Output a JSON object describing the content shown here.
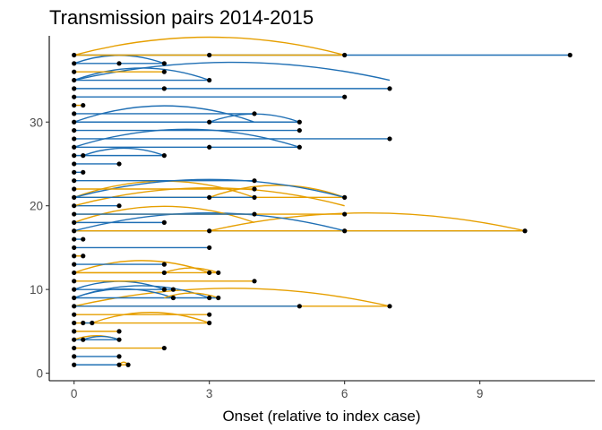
{
  "chart_data": {
    "type": "scatter",
    "title": "Transmission pairs 2014-2015",
    "xlabel": "Onset (relative to index case)",
    "ylabel": "",
    "xlim": [
      -0.55,
      11.55
    ],
    "ylim": [
      -0.9,
      40.3
    ],
    "x_ticks": [
      0,
      3,
      6,
      9
    ],
    "x_tick_labels": [
      "0",
      "3",
      "6",
      "9"
    ],
    "y_ticks": [
      0,
      10,
      20,
      30
    ],
    "y_tick_labels": [
      "0",
      "10",
      "20",
      "30"
    ],
    "grid": false,
    "legend": "none",
    "colors": {
      "blue": "#1f6fb4",
      "orange": "#e69f00",
      "point": "#000000",
      "axis": "#000000"
    },
    "pairs": [
      {
        "y": 1,
        "x0": 0,
        "x1": 1.2,
        "color": "orange"
      },
      {
        "y": 1,
        "x0": 0,
        "x1": 1.0,
        "color": "blue"
      },
      {
        "y": 1,
        "x0": 1.0,
        "x1": 1.2,
        "color": "orange",
        "arc": true
      },
      {
        "y": 2,
        "x0": 0,
        "x1": 1.0,
        "color": "blue"
      },
      {
        "y": 3,
        "x0": 0,
        "x1": 2.0,
        "color": "orange"
      },
      {
        "y": 4,
        "x0": 0,
        "x1": 1.0,
        "color": "blue"
      },
      {
        "y": 4,
        "x0": 0,
        "x1": 1.0,
        "color": "orange",
        "arc": true
      },
      {
        "y": 4,
        "x0": 0.2,
        "x1": 1.0,
        "color": "blue",
        "arc": true
      },
      {
        "y": 5,
        "x0": 0,
        "x1": 1.0,
        "color": "orange"
      },
      {
        "y": 6,
        "x0": 0,
        "x1": 3.0,
        "color": "orange"
      },
      {
        "y": 6,
        "x0": 0.4,
        "x1": 3.0,
        "color": "orange",
        "arc": true
      },
      {
        "y": 6,
        "x0": 0.2,
        "x1": 0.4,
        "color": "blue"
      },
      {
        "y": 7,
        "x0": 0,
        "x1": 3.0,
        "color": "orange"
      },
      {
        "y": 8,
        "x0": 0,
        "x1": 7.0,
        "color": "orange"
      },
      {
        "y": 8,
        "x0": 0,
        "x1": 7.0,
        "color": "orange",
        "arc": true
      },
      {
        "y": 8,
        "x0": 0,
        "x1": 5.0,
        "color": "blue"
      },
      {
        "y": 9,
        "x0": 0,
        "x1": 3.2,
        "color": "blue"
      },
      {
        "y": 9,
        "x0": 0,
        "x1": 2.2,
        "color": "blue",
        "arc": true
      },
      {
        "y": 9,
        "x0": 0,
        "x1": 3.0,
        "color": "blue",
        "arc": true
      },
      {
        "y": 9,
        "x0": 2.0,
        "x1": 3.2,
        "color": "orange",
        "arc": true
      },
      {
        "y": 10,
        "x0": 0,
        "x1": 2.2,
        "color": "blue"
      },
      {
        "y": 10,
        "x0": 0,
        "x1": 2.0,
        "color": "blue",
        "arc": true
      },
      {
        "y": 11,
        "x0": 0,
        "x1": 4.0,
        "color": "orange"
      },
      {
        "y": 12,
        "x0": 0,
        "x1": 3.2,
        "color": "orange"
      },
      {
        "y": 12,
        "x0": 0,
        "x1": 3.0,
        "color": "orange",
        "arc": true
      },
      {
        "y": 12,
        "x0": 0,
        "x1": 2.0,
        "color": "orange"
      },
      {
        "y": 12,
        "x0": 2.0,
        "x1": 3.2,
        "color": "orange",
        "arc": true
      },
      {
        "y": 13,
        "x0": 0,
        "x1": 2.0,
        "color": "blue"
      },
      {
        "y": 14,
        "x0": 0,
        "x1": 0.2,
        "color": "orange"
      },
      {
        "y": 15,
        "x0": 0,
        "x1": 3.0,
        "color": "blue"
      },
      {
        "y": 16,
        "x0": 0,
        "x1": 0.2,
        "color": "blue"
      },
      {
        "y": 17,
        "x0": 0,
        "x1": 10.0,
        "color": "blue"
      },
      {
        "y": 17,
        "x0": 0,
        "x1": 6.0,
        "color": "orange"
      },
      {
        "y": 17,
        "x0": 3.0,
        "x1": 10.0,
        "color": "orange",
        "arc": true
      },
      {
        "y": 17,
        "x0": 0,
        "x1": 6.0,
        "color": "blue",
        "arc": true
      },
      {
        "y": 17,
        "x0": 6.0,
        "x1": 10.0,
        "color": "orange"
      },
      {
        "y": 18,
        "x0": 0,
        "x1": 2.0,
        "color": "blue"
      },
      {
        "y": 18,
        "x0": 0,
        "x1": 4.0,
        "color": "orange",
        "arc": true
      },
      {
        "y": 19,
        "x0": 0,
        "x1": 6.0,
        "color": "orange"
      },
      {
        "y": 19,
        "x0": 0,
        "x1": 4.0,
        "color": "blue"
      },
      {
        "y": 20,
        "x0": 0,
        "x1": 1.0,
        "color": "blue"
      },
      {
        "y": 20,
        "x0": 0,
        "x1": 6.0,
        "color": "orange",
        "arc": true
      },
      {
        "y": 21,
        "x0": 0,
        "x1": 6.0,
        "color": "orange"
      },
      {
        "y": 21,
        "x0": 0,
        "x1": 4.0,
        "color": "blue"
      },
      {
        "y": 21,
        "x0": 0,
        "x1": 4.0,
        "color": "orange",
        "arc": true
      },
      {
        "y": 21,
        "x0": 3.0,
        "x1": 6.0,
        "color": "orange",
        "arc": true
      },
      {
        "y": 21,
        "x0": 0,
        "x1": 6.0,
        "color": "blue",
        "arc": true
      },
      {
        "y": 22,
        "x0": 0,
        "x1": 4.0,
        "color": "orange"
      },
      {
        "y": 23,
        "x0": 0,
        "x1": 4.0,
        "color": "blue"
      },
      {
        "y": 24,
        "x0": 0,
        "x1": 0.2,
        "color": "blue"
      },
      {
        "y": 25,
        "x0": 0,
        "x1": 1.0,
        "color": "blue"
      },
      {
        "y": 26,
        "x0": 0,
        "x1": 2.0,
        "color": "blue"
      },
      {
        "y": 26,
        "x0": 0.2,
        "x1": 2.0,
        "color": "blue",
        "arc": true
      },
      {
        "y": 27,
        "x0": 0,
        "x1": 5.0,
        "color": "blue"
      },
      {
        "y": 27,
        "x0": 0,
        "x1": 5.0,
        "color": "blue",
        "arc": true
      },
      {
        "y": 28,
        "x0": 0,
        "x1": 7.0,
        "color": "blue"
      },
      {
        "y": 29,
        "x0": 0,
        "x1": 5.0,
        "color": "blue"
      },
      {
        "y": 30,
        "x0": 0,
        "x1": 5.0,
        "color": "blue"
      },
      {
        "y": 30,
        "x0": 0,
        "x1": 4.0,
        "color": "blue",
        "arc": true
      },
      {
        "y": 30,
        "x0": 3.0,
        "x1": 5.0,
        "color": "blue",
        "arc": true
      },
      {
        "y": 31,
        "x0": 0,
        "x1": 4.0,
        "color": "blue"
      },
      {
        "y": 32,
        "x0": 0,
        "x1": 0.2,
        "color": "orange"
      },
      {
        "y": 33,
        "x0": 0,
        "x1": 6.0,
        "color": "blue"
      },
      {
        "y": 34,
        "x0": 0,
        "x1": 7.0,
        "color": "blue"
      },
      {
        "y": 35,
        "x0": 0,
        "x1": 7.0,
        "color": "blue",
        "arc": true
      },
      {
        "y": 35,
        "x0": 0,
        "x1": 3.0,
        "color": "blue"
      },
      {
        "y": 35,
        "x0": 0,
        "x1": 3.0,
        "color": "blue",
        "arc": true
      },
      {
        "y": 36,
        "x0": 0,
        "x1": 2.0,
        "color": "orange"
      },
      {
        "y": 37,
        "x0": 0,
        "x1": 2.0,
        "color": "blue"
      },
      {
        "y": 37,
        "x0": 0,
        "x1": 2.0,
        "color": "blue",
        "arc": true
      },
      {
        "y": 38,
        "x0": 0,
        "x1": 11.0,
        "color": "blue"
      },
      {
        "y": 38,
        "x0": 0,
        "x1": 6.0,
        "color": "orange"
      },
      {
        "y": 38,
        "x0": 0,
        "x1": 6.0,
        "color": "orange",
        "arc": true
      }
    ],
    "points": [
      [
        0,
        1
      ],
      [
        1.0,
        1
      ],
      [
        1.2,
        1
      ],
      [
        0,
        2
      ],
      [
        1.0,
        2
      ],
      [
        0,
        3
      ],
      [
        2.0,
        3
      ],
      [
        0,
        4
      ],
      [
        0.2,
        4
      ],
      [
        1.0,
        4
      ],
      [
        0,
        5
      ],
      [
        1.0,
        5
      ],
      [
        0,
        6
      ],
      [
        0.2,
        6
      ],
      [
        0.4,
        6
      ],
      [
        3.0,
        6
      ],
      [
        0,
        7
      ],
      [
        3.0,
        7
      ],
      [
        0,
        8
      ],
      [
        5.0,
        8
      ],
      [
        7.0,
        8
      ],
      [
        0,
        9
      ],
      [
        2.2,
        9
      ],
      [
        3.0,
        9
      ],
      [
        3.2,
        9
      ],
      [
        0,
        10
      ],
      [
        2.0,
        10
      ],
      [
        2.2,
        10
      ],
      [
        0,
        11
      ],
      [
        4.0,
        11
      ],
      [
        0,
        12
      ],
      [
        2.0,
        12
      ],
      [
        3.0,
        12
      ],
      [
        3.2,
        12
      ],
      [
        0,
        13
      ],
      [
        2.0,
        13
      ],
      [
        0,
        14
      ],
      [
        0.2,
        14
      ],
      [
        0,
        15
      ],
      [
        3.0,
        15
      ],
      [
        0,
        16
      ],
      [
        0.2,
        16
      ],
      [
        0,
        17
      ],
      [
        3.0,
        17
      ],
      [
        6.0,
        17
      ],
      [
        10.0,
        17
      ],
      [
        0,
        18
      ],
      [
        2.0,
        18
      ],
      [
        0,
        19
      ],
      [
        4.0,
        19
      ],
      [
        6.0,
        19
      ],
      [
        0,
        20
      ],
      [
        1.0,
        20
      ],
      [
        0,
        21
      ],
      [
        3.0,
        21
      ],
      [
        4.0,
        21
      ],
      [
        6.0,
        21
      ],
      [
        0,
        22
      ],
      [
        4.0,
        22
      ],
      [
        0,
        23
      ],
      [
        4.0,
        23
      ],
      [
        0,
        24
      ],
      [
        0.2,
        24
      ],
      [
        0,
        25
      ],
      [
        1.0,
        25
      ],
      [
        0,
        26
      ],
      [
        0.2,
        26
      ],
      [
        2.0,
        26
      ],
      [
        0,
        27
      ],
      [
        3.0,
        27
      ],
      [
        5.0,
        27
      ],
      [
        0,
        28
      ],
      [
        7.0,
        28
      ],
      [
        0,
        29
      ],
      [
        5.0,
        29
      ],
      [
        0,
        30
      ],
      [
        3.0,
        30
      ],
      [
        5.0,
        30
      ],
      [
        0,
        31
      ],
      [
        4.0,
        31
      ],
      [
        0,
        32
      ],
      [
        0.2,
        32
      ],
      [
        0,
        33
      ],
      [
        6.0,
        33
      ],
      [
        0,
        34
      ],
      [
        2.0,
        34
      ],
      [
        7.0,
        34
      ],
      [
        0,
        35
      ],
      [
        3.0,
        35
      ],
      [
        0,
        36
      ],
      [
        2.0,
        36
      ],
      [
        0,
        37
      ],
      [
        1.0,
        37
      ],
      [
        2.0,
        37
      ],
      [
        0,
        38
      ],
      [
        3.0,
        38
      ],
      [
        6.0,
        38
      ],
      [
        11.0,
        38
      ]
    ]
  }
}
